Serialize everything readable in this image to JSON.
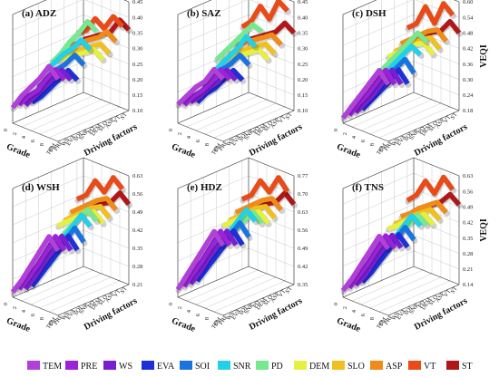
{
  "legend": {
    "items": [
      {
        "label": "TEM",
        "color": "#b040d8"
      },
      {
        "label": "PRE",
        "color": "#9a22d8"
      },
      {
        "label": "WS",
        "color": "#7a1fd0"
      },
      {
        "label": "EVA",
        "color": "#1d2fd8"
      },
      {
        "label": "SOI",
        "color": "#1a74e0"
      },
      {
        "label": "SNR",
        "color": "#22d0e8"
      },
      {
        "label": "PD",
        "color": "#78e890"
      },
      {
        "label": "DEM",
        "color": "#e6f040"
      },
      {
        "label": "SLO",
        "color": "#f0c020"
      },
      {
        "label": "ASP",
        "color": "#f08a18"
      },
      {
        "label": "VT",
        "color": "#e84a18"
      },
      {
        "label": "ST",
        "color": "#b01818"
      }
    ]
  },
  "factor_tick_labels": [
    "TEM",
    "PRE",
    "WS",
    "EVA",
    "SOI",
    "SNR",
    "PD",
    "DEM",
    "SLO",
    "ASP",
    "VT",
    "ST"
  ],
  "chart_data": [
    {
      "type": "line",
      "panel_label": "(a)",
      "title": "ADZ",
      "xlabel": "Grade",
      "ylabel": "Driving factors",
      "zlabel": "",
      "x_ticks": [
        "10",
        "8",
        "6",
        "4",
        "2",
        "0"
      ],
      "z_ticks": [
        "0.10",
        "0.15",
        "0.20",
        "0.25",
        "0.30",
        "0.35",
        "0.40",
        "0.45"
      ],
      "zlim": [
        0.1,
        0.45
      ],
      "series": [
        {
          "values": [
            0.3,
            0.33,
            0.28,
            0.24,
            0.2,
            0.15
          ]
        },
        {
          "values": [
            0.29,
            0.31,
            0.27,
            0.22,
            0.19,
            0.15
          ]
        },
        {
          "values": [
            0.28,
            0.3,
            0.26,
            0.22,
            0.18,
            0.14
          ]
        },
        {
          "values": [
            0.27,
            0.29,
            0.25,
            0.21,
            0.17,
            0.14
          ]
        },
        {
          "values": [
            0.31,
            0.33,
            0.29,
            0.26,
            0.22,
            0.18
          ]
        },
        {
          "values": [
            0.35,
            0.37,
            0.33,
            0.3,
            0.26,
            0.22
          ]
        },
        {
          "values": [
            0.4,
            0.42,
            0.37,
            0.33,
            0.28,
            0.24
          ]
        },
        {
          "values": [
            0.3,
            0.32,
            0.3,
            0.28,
            0.26,
            0.24
          ]
        },
        {
          "values": [
            0.31,
            0.33,
            0.31,
            0.29,
            0.27,
            0.25
          ]
        },
        {
          "values": [
            0.34,
            0.36,
            0.33,
            0.31,
            0.29,
            0.27
          ]
        },
        {
          "values": [
            0.38,
            0.4,
            0.35,
            0.37,
            0.32,
            0.3
          ]
        },
        {
          "values": [
            0.36,
            0.38,
            0.33,
            0.31,
            0.29,
            0.27
          ]
        }
      ]
    },
    {
      "type": "line",
      "panel_label": "(b)",
      "title": "SAZ",
      "xlabel": "Grade",
      "ylabel": "Driving factors",
      "zlabel": "",
      "x_ticks": [
        "10",
        "8",
        "6",
        "4",
        "2",
        "0"
      ],
      "z_ticks": [
        "0.10",
        "0.15",
        "0.20",
        "0.25",
        "0.30",
        "0.35",
        "0.40",
        "0.45"
      ],
      "zlim": [
        0.1,
        0.45
      ],
      "series": [
        {
          "values": [
            0.3,
            0.32,
            0.27,
            0.24,
            0.2,
            0.16
          ]
        },
        {
          "values": [
            0.29,
            0.31,
            0.26,
            0.22,
            0.19,
            0.15
          ]
        },
        {
          "values": [
            0.28,
            0.3,
            0.25,
            0.22,
            0.18,
            0.15
          ]
        },
        {
          "values": [
            0.27,
            0.29,
            0.25,
            0.21,
            0.18,
            0.14
          ]
        },
        {
          "values": [
            0.31,
            0.33,
            0.29,
            0.26,
            0.22,
            0.18
          ]
        },
        {
          "values": [
            0.36,
            0.38,
            0.33,
            0.29,
            0.25,
            0.21
          ]
        },
        {
          "values": [
            0.4,
            0.41,
            0.37,
            0.33,
            0.29,
            0.25
          ]
        },
        {
          "values": [
            0.3,
            0.32,
            0.3,
            0.28,
            0.26,
            0.24
          ]
        },
        {
          "values": [
            0.31,
            0.33,
            0.31,
            0.29,
            0.27,
            0.25
          ]
        },
        {
          "values": [
            0.33,
            0.35,
            0.33,
            0.31,
            0.29,
            0.27
          ]
        },
        {
          "values": [
            0.43,
            0.45,
            0.38,
            0.41,
            0.35,
            0.32
          ]
        },
        {
          "values": [
            0.35,
            0.37,
            0.33,
            0.31,
            0.29,
            0.27
          ]
        }
      ]
    },
    {
      "type": "line",
      "panel_label": "(c)",
      "title": "DSH",
      "xlabel": "Grade",
      "ylabel": "Driving factors",
      "zlabel": "VEQI",
      "x_ticks": [
        "10",
        "8",
        "6",
        "4",
        "2",
        "0"
      ],
      "z_ticks": [
        "0.18",
        "0.24",
        "0.30",
        "0.36",
        "0.42",
        "0.48",
        "0.54",
        "0.60"
      ],
      "zlim": [
        0.18,
        0.6
      ],
      "series": [
        {
          "values": [
            0.4,
            0.44,
            0.38,
            0.32,
            0.26,
            0.2
          ]
        },
        {
          "values": [
            0.39,
            0.43,
            0.37,
            0.31,
            0.26,
            0.2
          ]
        },
        {
          "values": [
            0.38,
            0.42,
            0.36,
            0.3,
            0.25,
            0.2
          ]
        },
        {
          "values": [
            0.37,
            0.41,
            0.35,
            0.3,
            0.25,
            0.2
          ]
        },
        {
          "values": [
            0.4,
            0.44,
            0.39,
            0.34,
            0.29,
            0.24
          ]
        },
        {
          "values": [
            0.46,
            0.48,
            0.43,
            0.38,
            0.33,
            0.28
          ]
        },
        {
          "values": [
            0.5,
            0.52,
            0.47,
            0.42,
            0.37,
            0.32
          ]
        },
        {
          "values": [
            0.44,
            0.47,
            0.45,
            0.42,
            0.39,
            0.36
          ]
        },
        {
          "values": [
            0.45,
            0.48,
            0.46,
            0.43,
            0.4,
            0.37
          ]
        },
        {
          "values": [
            0.47,
            0.5,
            0.48,
            0.45,
            0.42,
            0.39
          ]
        },
        {
          "values": [
            0.56,
            0.59,
            0.5,
            0.55,
            0.47,
            0.44
          ]
        },
        {
          "values": [
            0.48,
            0.51,
            0.46,
            0.44,
            0.41,
            0.38
          ]
        }
      ]
    },
    {
      "type": "line",
      "panel_label": "(d)",
      "title": "WSH",
      "xlabel": "Grade",
      "ylabel": "Driving factors",
      "zlabel": "",
      "x_ticks": [
        "10",
        "8",
        "6",
        "4",
        "2",
        "0"
      ],
      "z_ticks": [
        "0.21",
        "0.28",
        "0.35",
        "0.42",
        "0.49",
        "0.56",
        "0.63"
      ],
      "zlim": [
        0.21,
        0.63
      ],
      "series": [
        {
          "values": [
            0.46,
            0.5,
            0.43,
            0.36,
            0.29,
            0.23
          ]
        },
        {
          "values": [
            0.45,
            0.49,
            0.42,
            0.35,
            0.29,
            0.23
          ]
        },
        {
          "values": [
            0.44,
            0.48,
            0.41,
            0.35,
            0.28,
            0.22
          ]
        },
        {
          "values": [
            0.43,
            0.47,
            0.4,
            0.34,
            0.28,
            0.22
          ]
        },
        {
          "values": [
            0.45,
            0.49,
            0.43,
            0.37,
            0.31,
            0.26
          ]
        },
        {
          "values": [
            0.5,
            0.53,
            0.47,
            0.41,
            0.36,
            0.31
          ]
        },
        {
          "values": [
            0.51,
            0.54,
            0.49,
            0.44,
            0.39,
            0.34
          ]
        },
        {
          "values": [
            0.49,
            0.52,
            0.5,
            0.47,
            0.44,
            0.41
          ]
        },
        {
          "values": [
            0.5,
            0.53,
            0.51,
            0.48,
            0.45,
            0.42
          ]
        },
        {
          "values": [
            0.52,
            0.55,
            0.53,
            0.5,
            0.47,
            0.44
          ]
        },
        {
          "values": [
            0.59,
            0.62,
            0.55,
            0.58,
            0.51,
            0.48
          ]
        },
        {
          "values": [
            0.52,
            0.55,
            0.5,
            0.48,
            0.45,
            0.42
          ]
        }
      ]
    },
    {
      "type": "line",
      "panel_label": "(e)",
      "title": "HDZ",
      "xlabel": "Grade",
      "ylabel": "Driving factors",
      "zlabel": "",
      "x_ticks": [
        "10",
        "8",
        "6",
        "4",
        "2",
        "0"
      ],
      "z_ticks": [
        "0.35",
        "0.42",
        "0.49",
        "0.56",
        "0.63",
        "0.70",
        "0.77"
      ],
      "zlim": [
        0.35,
        0.77
      ],
      "series": [
        {
          "values": [
            0.62,
            0.66,
            0.59,
            0.52,
            0.45,
            0.38
          ]
        },
        {
          "values": [
            0.61,
            0.65,
            0.58,
            0.51,
            0.45,
            0.38
          ]
        },
        {
          "values": [
            0.6,
            0.64,
            0.57,
            0.51,
            0.44,
            0.38
          ]
        },
        {
          "values": [
            0.59,
            0.63,
            0.56,
            0.5,
            0.44,
            0.38
          ]
        },
        {
          "values": [
            0.61,
            0.65,
            0.59,
            0.53,
            0.47,
            0.42
          ]
        },
        {
          "values": [
            0.66,
            0.69,
            0.63,
            0.57,
            0.52,
            0.47
          ]
        },
        {
          "values": [
            0.64,
            0.67,
            0.62,
            0.57,
            0.53,
            0.49
          ]
        },
        {
          "values": [
            0.63,
            0.66,
            0.64,
            0.61,
            0.58,
            0.55
          ]
        },
        {
          "values": [
            0.64,
            0.67,
            0.65,
            0.62,
            0.59,
            0.56
          ]
        },
        {
          "values": [
            0.66,
            0.69,
            0.67,
            0.64,
            0.61,
            0.58
          ]
        },
        {
          "values": [
            0.72,
            0.76,
            0.69,
            0.72,
            0.65,
            0.62
          ]
        },
        {
          "values": [
            0.66,
            0.69,
            0.64,
            0.62,
            0.59,
            0.56
          ]
        }
      ]
    },
    {
      "type": "line",
      "panel_label": "(f)",
      "title": "TNS",
      "xlabel": "Grade",
      "ylabel": "Driving factors",
      "zlabel": "VEQI",
      "x_ticks": [
        "10",
        "8",
        "6",
        "4",
        "2",
        "0"
      ],
      "z_ticks": [
        "0.14",
        "0.21",
        "0.28",
        "0.35",
        "0.42",
        "0.49",
        "0.56",
        "0.63"
      ],
      "zlim": [
        0.14,
        0.63
      ],
      "series": [
        {
          "values": [
            0.44,
            0.48,
            0.4,
            0.32,
            0.24,
            0.17
          ]
        },
        {
          "values": [
            0.43,
            0.47,
            0.39,
            0.31,
            0.24,
            0.17
          ]
        },
        {
          "values": [
            0.42,
            0.46,
            0.38,
            0.31,
            0.23,
            0.17
          ]
        },
        {
          "values": [
            0.41,
            0.45,
            0.37,
            0.3,
            0.23,
            0.17
          ]
        },
        {
          "values": [
            0.43,
            0.47,
            0.4,
            0.33,
            0.27,
            0.21
          ]
        },
        {
          "values": [
            0.48,
            0.51,
            0.44,
            0.37,
            0.31,
            0.25
          ]
        },
        {
          "values": [
            0.47,
            0.5,
            0.44,
            0.38,
            0.33,
            0.28
          ]
        },
        {
          "values": [
            0.46,
            0.49,
            0.46,
            0.43,
            0.39,
            0.36
          ]
        },
        {
          "values": [
            0.47,
            0.5,
            0.47,
            0.44,
            0.4,
            0.37
          ]
        },
        {
          "values": [
            0.49,
            0.52,
            0.49,
            0.46,
            0.42,
            0.39
          ]
        },
        {
          "values": [
            0.58,
            0.62,
            0.53,
            0.57,
            0.49,
            0.45
          ]
        },
        {
          "values": [
            0.5,
            0.53,
            0.48,
            0.45,
            0.42,
            0.39
          ]
        }
      ]
    }
  ]
}
